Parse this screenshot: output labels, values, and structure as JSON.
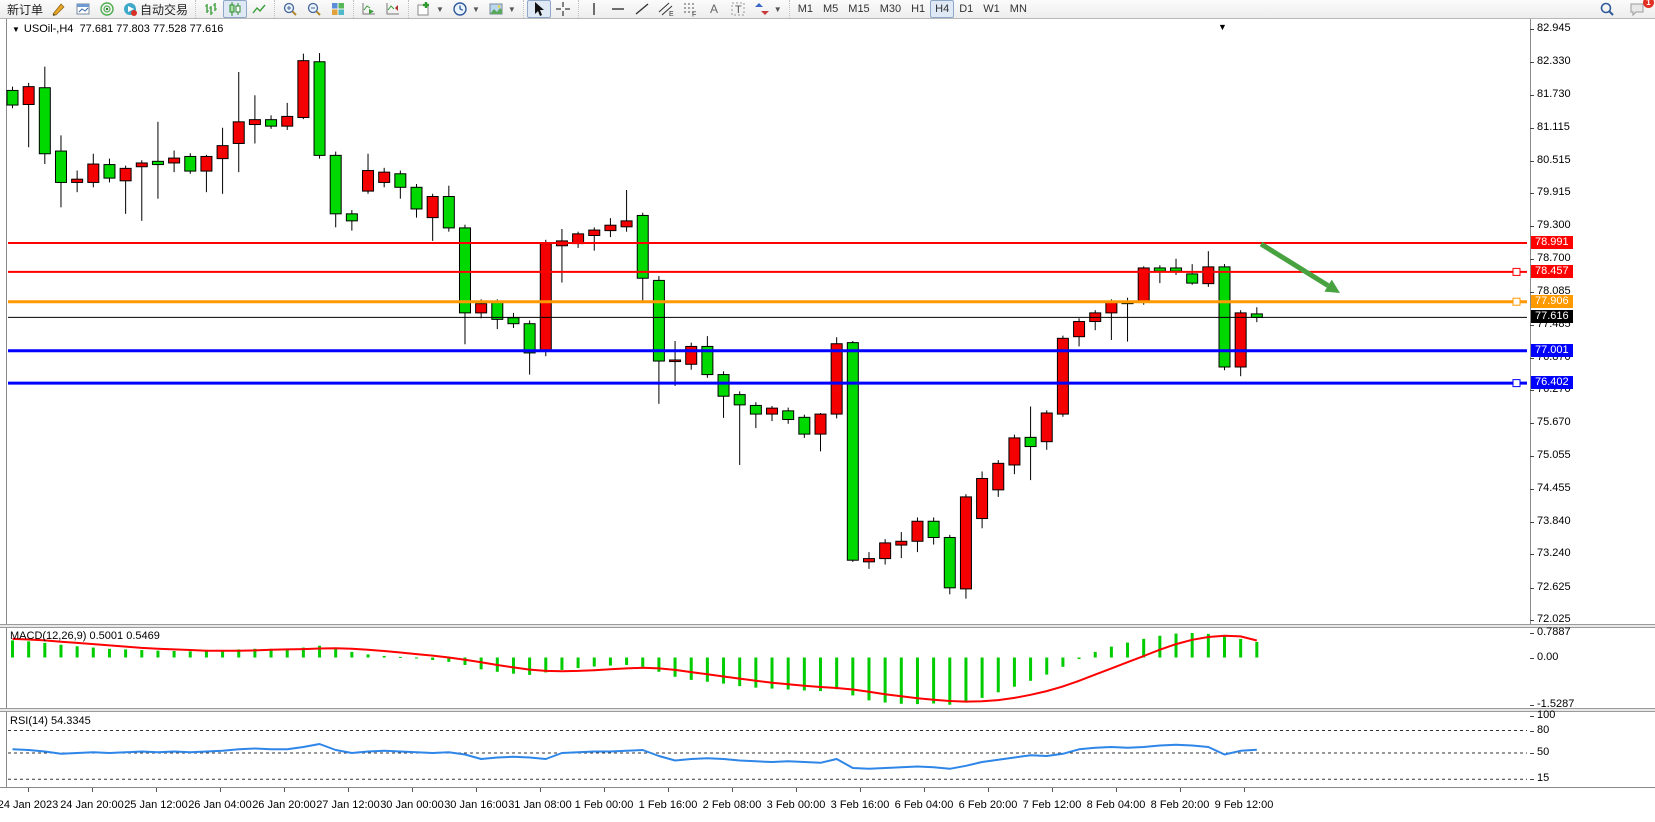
{
  "toolbar": {
    "new_order": "新订单",
    "auto_trading": "自动交易",
    "timeframes": [
      "M1",
      "M5",
      "M15",
      "M30",
      "H1",
      "H4",
      "D1",
      "W1",
      "MN"
    ],
    "active_timeframe": "H4",
    "chat_badge": "1"
  },
  "chart": {
    "title_symbol": "USOil-,H4",
    "title_ohlc": "77.681 77.803 77.528 77.616"
  },
  "chart_data": {
    "type": "candlestick",
    "symbol": "USOil-",
    "timeframe": "H4",
    "last_ohlc": {
      "open": "77.681",
      "high": "77.803",
      "low": "77.528",
      "close": "77.616"
    },
    "bull_color": "#f40000",
    "bear_color": "#00d900",
    "price_ticks": [
      "82.945",
      "82.330",
      "81.730",
      "81.115",
      "80.515",
      "79.915",
      "79.300",
      "78.700",
      "78.085",
      "77.485",
      "76.870",
      "76.270",
      "75.670",
      "75.055",
      "74.455",
      "73.840",
      "73.240",
      "72.625",
      "72.025"
    ],
    "time_labels": [
      "24 Jan 2023",
      "24 Jan 20:00",
      "25 Jan 12:00",
      "26 Jan 04:00",
      "26 Jan 20:00",
      "27 Jan 12:00",
      "30 Jan 00:00",
      "30 Jan 16:00",
      "31 Jan 08:00",
      "1 Feb 00:00",
      "1 Feb 16:00",
      "2 Feb 08:00",
      "3 Feb 00:00",
      "3 Feb 16:00",
      "6 Feb 04:00",
      "6 Feb 20:00",
      "7 Feb 12:00",
      "8 Feb 04:00",
      "8 Feb 20:00",
      "9 Feb 12:00"
    ],
    "hlines": [
      {
        "price": 78.991,
        "label": "78.991",
        "color": "#ff0000",
        "width": 2,
        "handle": false
      },
      {
        "price": 78.457,
        "label": "78.457",
        "color": "#ff0000",
        "width": 2,
        "handle": true
      },
      {
        "price": 77.906,
        "label": "77.906",
        "color": "#ff9900",
        "width": 3,
        "handle": true
      },
      {
        "price": 77.616,
        "label": "77.616",
        "color": "#000000",
        "width": 1,
        "handle": false
      },
      {
        "price": 77.001,
        "label": "77.001",
        "color": "#0000ff",
        "width": 3,
        "handle": false
      },
      {
        "price": 76.402,
        "label": "76.402",
        "color": "#0000ff",
        "width": 3,
        "handle": true
      }
    ],
    "arrow": {
      "from": [
        1261,
        244
      ],
      "to": [
        1340,
        293
      ],
      "color": "#47a23f"
    },
    "candles": [
      [
        81.81,
        81.88,
        81.48,
        81.54
      ],
      [
        81.55,
        81.95,
        80.76,
        81.88
      ],
      [
        81.86,
        82.25,
        80.45,
        80.64
      ],
      [
        80.69,
        80.98,
        79.65,
        80.11
      ],
      [
        80.11,
        80.33,
        79.93,
        80.17
      ],
      [
        80.11,
        80.64,
        80.02,
        80.45
      ],
      [
        80.44,
        80.55,
        80.11,
        80.19
      ],
      [
        80.14,
        80.42,
        79.53,
        80.37
      ],
      [
        80.4,
        80.52,
        79.4,
        80.47
      ],
      [
        80.5,
        81.23,
        79.81,
        80.44
      ],
      [
        80.47,
        80.7,
        80.3,
        80.56
      ],
      [
        80.59,
        80.65,
        80.27,
        80.32
      ],
      [
        80.32,
        80.62,
        79.93,
        80.59
      ],
      [
        80.55,
        81.12,
        79.9,
        80.79
      ],
      [
        80.83,
        82.15,
        80.3,
        81.23
      ],
      [
        81.18,
        81.72,
        80.83,
        81.27
      ],
      [
        81.27,
        81.35,
        81.1,
        81.15
      ],
      [
        81.15,
        81.58,
        81.08,
        81.33
      ],
      [
        81.31,
        82.49,
        81.28,
        82.36
      ],
      [
        82.34,
        82.5,
        80.55,
        80.61
      ],
      [
        80.61,
        80.68,
        79.28,
        79.53
      ],
      [
        79.53,
        79.6,
        79.22,
        79.4
      ],
      [
        79.95,
        80.64,
        79.9,
        80.33
      ],
      [
        80.11,
        80.38,
        80.02,
        80.3
      ],
      [
        80.27,
        80.33,
        79.81,
        80.02
      ],
      [
        80.02,
        80.08,
        79.46,
        79.62
      ],
      [
        79.46,
        79.9,
        79.03,
        79.85
      ],
      [
        79.85,
        80.05,
        79.2,
        79.27
      ],
      [
        79.27,
        79.33,
        77.12,
        77.7
      ],
      [
        77.7,
        77.95,
        77.6,
        77.87
      ],
      [
        77.89,
        77.95,
        77.4,
        77.58
      ],
      [
        77.61,
        77.7,
        77.42,
        77.5
      ],
      [
        77.5,
        77.56,
        76.56,
        76.96
      ],
      [
        76.99,
        79.05,
        76.9,
        78.98
      ],
      [
        78.94,
        79.25,
        78.26,
        79.03
      ],
      [
        78.98,
        79.2,
        78.9,
        79.16
      ],
      [
        79.13,
        79.28,
        78.85,
        79.23
      ],
      [
        79.22,
        79.45,
        79.1,
        79.32
      ],
      [
        79.29,
        79.97,
        79.2,
        79.4
      ],
      [
        79.5,
        79.55,
        77.92,
        78.34
      ],
      [
        78.3,
        78.38,
        76.02,
        76.81
      ],
      [
        76.81,
        77.18,
        76.35,
        76.83
      ],
      [
        76.75,
        77.15,
        76.65,
        77.08
      ],
      [
        77.08,
        77.27,
        76.5,
        76.56
      ],
      [
        76.56,
        76.62,
        75.76,
        76.16
      ],
      [
        76.19,
        76.25,
        74.89,
        76.0
      ],
      [
        75.99,
        76.05,
        75.57,
        75.83
      ],
      [
        75.83,
        75.98,
        75.7,
        75.94
      ],
      [
        75.89,
        75.95,
        75.65,
        75.73
      ],
      [
        75.77,
        75.82,
        75.39,
        75.46
      ],
      [
        75.46,
        75.85,
        75.14,
        75.83
      ],
      [
        75.83,
        77.25,
        75.75,
        77.13
      ],
      [
        77.15,
        77.18,
        73.1,
        73.13
      ],
      [
        73.1,
        73.28,
        72.97,
        73.16
      ],
      [
        73.16,
        73.52,
        73.05,
        73.45
      ],
      [
        73.41,
        73.65,
        73.17,
        73.48
      ],
      [
        73.48,
        73.92,
        73.28,
        73.85
      ],
      [
        73.85,
        73.92,
        73.42,
        73.55
      ],
      [
        73.55,
        73.6,
        72.5,
        72.62
      ],
      [
        72.6,
        74.35,
        72.42,
        74.3
      ],
      [
        73.9,
        74.77,
        73.72,
        74.64
      ],
      [
        74.43,
        74.98,
        74.3,
        74.92
      ],
      [
        74.89,
        75.45,
        74.72,
        75.39
      ],
      [
        75.4,
        75.97,
        74.61,
        75.23
      ],
      [
        75.32,
        75.9,
        75.17,
        75.85
      ],
      [
        75.83,
        77.28,
        75.78,
        77.23
      ],
      [
        77.26,
        77.6,
        77.08,
        77.54
      ],
      [
        77.54,
        77.75,
        77.38,
        77.7
      ],
      [
        77.7,
        77.95,
        77.2,
        77.9
      ],
      [
        77.9,
        77.98,
        77.17,
        77.88
      ],
      [
        77.9,
        78.56,
        77.85,
        78.53
      ],
      [
        78.53,
        78.58,
        78.25,
        78.47
      ],
      [
        78.53,
        78.7,
        78.4,
        78.47
      ],
      [
        78.42,
        78.6,
        78.22,
        78.25
      ],
      [
        78.24,
        78.84,
        78.18,
        78.55
      ],
      [
        78.55,
        78.6,
        76.64,
        76.7
      ],
      [
        76.7,
        77.75,
        76.53,
        77.7
      ],
      [
        77.681,
        77.803,
        77.528,
        77.616
      ]
    ],
    "macd": {
      "label": "MACD(12,26,9)",
      "value_main": "0.5001",
      "value_signal": "0.5469",
      "axis_labels": [
        "0.7887",
        "0.00",
        "-1.5287"
      ],
      "axis_values": [
        0.7887,
        0,
        -1.5287
      ],
      "hist_color": "#00cc00",
      "signal_color": "#ff0000",
      "histogram": [
        0.55,
        0.52,
        0.47,
        0.41,
        0.36,
        0.32,
        0.28,
        0.26,
        0.24,
        0.22,
        0.21,
        0.2,
        0.2,
        0.22,
        0.26,
        0.28,
        0.28,
        0.27,
        0.32,
        0.38,
        0.3,
        0.18,
        0.1,
        0.05,
        0.02,
        -0.02,
        -0.08,
        -0.14,
        -0.24,
        -0.38,
        -0.46,
        -0.52,
        -0.56,
        -0.48,
        -0.4,
        -0.34,
        -0.29,
        -0.26,
        -0.24,
        -0.3,
        -0.46,
        -0.62,
        -0.72,
        -0.78,
        -0.84,
        -0.92,
        -0.97,
        -1.0,
        -1.03,
        -1.06,
        -1.08,
        -1.02,
        -1.22,
        -1.38,
        -1.45,
        -1.49,
        -1.5,
        -1.48,
        -1.52,
        -1.45,
        -1.3,
        -1.12,
        -0.94,
        -0.75,
        -0.55,
        -0.3,
        -0.05,
        0.18,
        0.35,
        0.48,
        0.6,
        0.7,
        0.77,
        0.79,
        0.76,
        0.7,
        0.6,
        0.5001
      ],
      "signal": [
        0.6,
        0.58,
        0.55,
        0.51,
        0.47,
        0.43,
        0.39,
        0.35,
        0.31,
        0.28,
        0.26,
        0.24,
        0.22,
        0.22,
        0.22,
        0.23,
        0.25,
        0.26,
        0.27,
        0.29,
        0.3,
        0.28,
        0.25,
        0.21,
        0.16,
        0.11,
        0.06,
        0.0,
        -0.07,
        -0.15,
        -0.24,
        -0.32,
        -0.39,
        -0.43,
        -0.44,
        -0.43,
        -0.41,
        -0.38,
        -0.35,
        -0.33,
        -0.35,
        -0.4,
        -0.47,
        -0.54,
        -0.61,
        -0.68,
        -0.75,
        -0.81,
        -0.86,
        -0.91,
        -0.95,
        -0.98,
        -1.03,
        -1.1,
        -1.18,
        -1.25,
        -1.31,
        -1.36,
        -1.4,
        -1.42,
        -1.41,
        -1.37,
        -1.3,
        -1.2,
        -1.08,
        -0.93,
        -0.75,
        -0.55,
        -0.35,
        -0.15,
        0.05,
        0.25,
        0.43,
        0.57,
        0.66,
        0.7,
        0.68,
        0.5469
      ]
    },
    "rsi": {
      "label": "RSI(14)",
      "value": "54.3345",
      "axis_labels": [
        "100",
        "80",
        "50",
        "15"
      ],
      "axis_values": [
        100,
        80,
        50,
        15
      ],
      "levels": [
        80,
        50,
        15
      ],
      "color": "#2e86e8",
      "series": [
        55,
        54,
        52,
        49,
        50,
        51,
        50,
        51,
        52,
        51,
        52,
        51,
        52,
        53,
        55,
        56,
        55,
        55,
        58,
        62,
        54,
        50,
        52,
        53,
        52,
        51,
        50,
        51,
        48,
        42,
        44,
        45,
        44,
        42,
        50,
        51,
        52,
        52,
        53,
        54,
        46,
        40,
        42,
        43,
        42,
        40,
        39,
        38,
        39,
        38,
        37,
        42,
        30,
        29,
        30,
        31,
        32,
        31,
        29,
        33,
        38,
        41,
        44,
        47,
        46,
        49,
        55,
        57,
        58,
        57,
        58,
        60,
        61,
        60,
        58,
        48,
        53,
        54.3345
      ]
    }
  }
}
